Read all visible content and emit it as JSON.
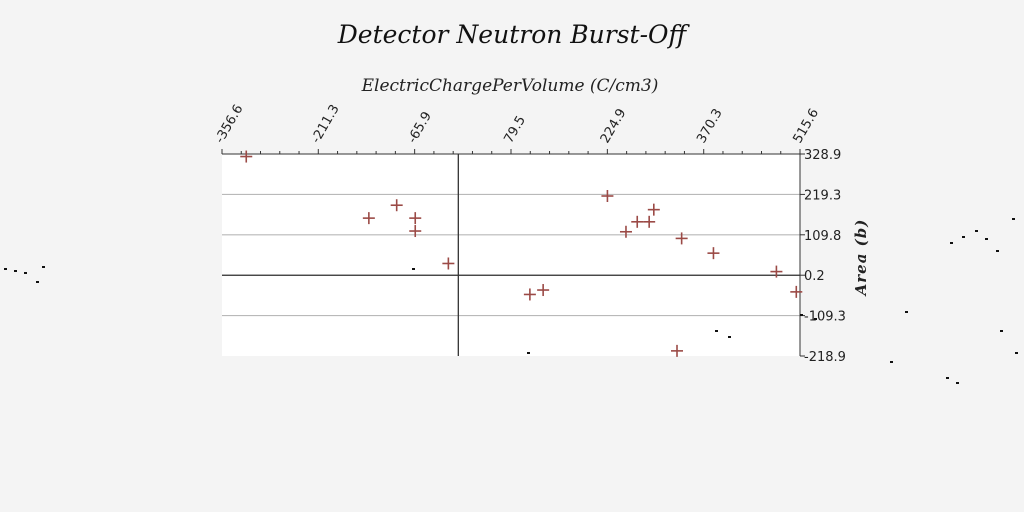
{
  "chart_data": {
    "type": "scatter",
    "title": "Detector Neutron Burst-Off",
    "xlabel": "ElectricChargePerVolume (C/cm3)",
    "ylabel": "Area (b)",
    "x_axis_position": "top",
    "y_axis_position": "right",
    "xlim": [
      -356.6,
      515.6
    ],
    "ylim": [
      -218.9,
      328.9
    ],
    "x_ticks": [
      "-356.6",
      "-211.3",
      "-65.9",
      "79.5",
      "224.9",
      "370.3",
      "515.6"
    ],
    "y_ticks": [
      "328.9",
      "219.3",
      "109.8",
      "0.2",
      "-109.3",
      "-218.9"
    ],
    "grid": "horizontal",
    "marker": "plus",
    "marker_color": "#9b4a46",
    "series": [
      {
        "points": [
          {
            "x": -320,
            "y": 322
          },
          {
            "x": -135,
            "y": 155
          },
          {
            "x": -93,
            "y": 190
          },
          {
            "x": -65,
            "y": 155
          },
          {
            "x": -65,
            "y": 120
          },
          {
            "x": -15,
            "y": 32
          },
          {
            "x": 108,
            "y": -52
          },
          {
            "x": 128,
            "y": -40
          },
          {
            "x": 225,
            "y": 215
          },
          {
            "x": 253,
            "y": 118
          },
          {
            "x": 270,
            "y": 145
          },
          {
            "x": 288,
            "y": 145
          },
          {
            "x": 295,
            "y": 178
          },
          {
            "x": 337,
            "y": 100
          },
          {
            "x": 385,
            "y": 60
          },
          {
            "x": 480,
            "y": 10
          },
          {
            "x": 510,
            "y": -45
          },
          {
            "x": 330,
            "y": -205
          }
        ]
      }
    ]
  }
}
